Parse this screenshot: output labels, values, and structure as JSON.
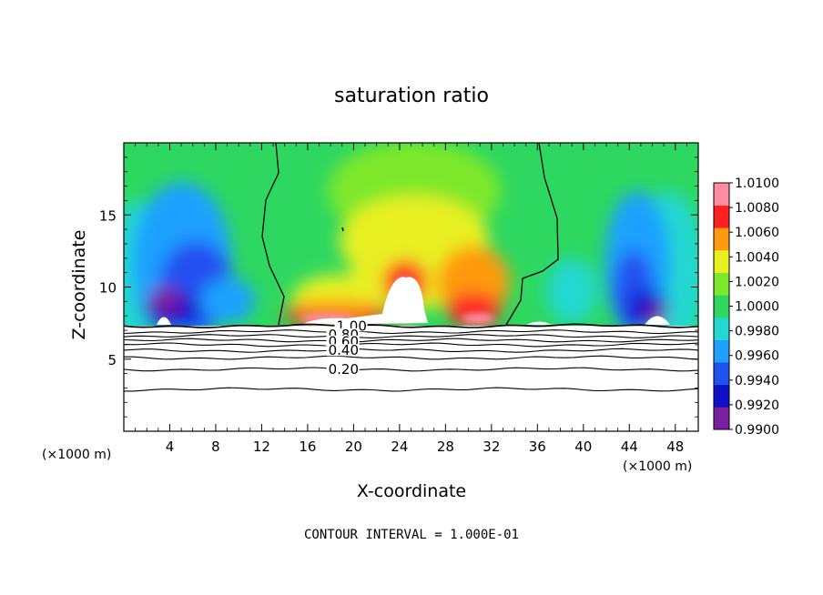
{
  "chart_data": {
    "type": "heatmap",
    "title": "saturation ratio",
    "xlabel": "X-coordinate",
    "ylabel": "Z-coordinate",
    "x_unit_left": "(×1000 m)",
    "x_unit_right": "(×1000 m)",
    "xlim": [
      0,
      50
    ],
    "ylim": [
      0,
      20
    ],
    "xticks": [
      4,
      8,
      12,
      16,
      20,
      24,
      28,
      32,
      36,
      40,
      44,
      48
    ],
    "yticks": [
      5,
      10,
      15
    ],
    "color_scale": {
      "levels": [
        "0.9900",
        "0.9920",
        "0.9940",
        "0.9960",
        "0.9980",
        "1.0000",
        "1.0020",
        "1.0040",
        "1.0060",
        "1.0080",
        "1.0100"
      ],
      "colors": [
        "#7a1fa0",
        "#1010c8",
        "#2050f0",
        "#1ea0ff",
        "#22d8d0",
        "#2ed860",
        "#7de82a",
        "#e8f020",
        "#ff9a10",
        "#ff2020",
        "#ff8ca0"
      ]
    },
    "contour_labels": [
      {
        "text": "1.00",
        "x": 18.5,
        "z": 7.3
      },
      {
        "text": "0.80",
        "x": 17.8,
        "z": 6.7
      },
      {
        "text": "0.60",
        "x": 17.8,
        "z": 6.2
      },
      {
        "text": "0.40",
        "x": 17.8,
        "z": 5.6
      },
      {
        "text": "0.20",
        "x": 17.8,
        "z": 4.3
      }
    ],
    "contour_lines_z": [
      7.3,
      6.9,
      6.6,
      6.3,
      6.0,
      5.6,
      5.1,
      4.3,
      2.9
    ],
    "cloud_base_z": 7.3,
    "contour_interval_text": "CONTOUR INTERVAL =  1.000E-01"
  }
}
